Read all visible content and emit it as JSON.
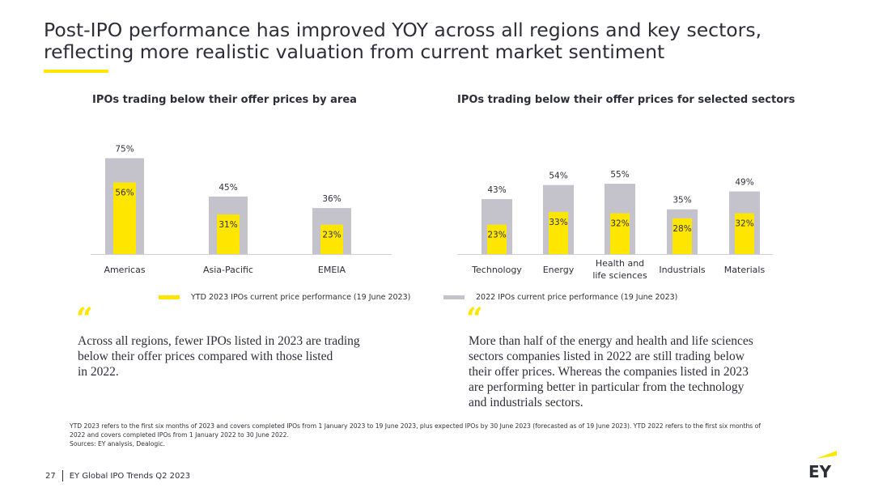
{
  "title_line1": "Post-IPO performance has improved YOY across all regions and key sectors,",
  "title_line2": "reflecting more realistic valuation from current market sentiment",
  "colors": {
    "ytd2023": "#ffe600",
    "y2022": "#c4c3cc",
    "text": "#2e2e38"
  },
  "chart_data": [
    {
      "type": "bar",
      "title": "IPOs trading below their offer prices by area",
      "categories": [
        "Americas",
        "Asia-Pacific",
        "EMEIA"
      ],
      "series": [
        {
          "name": "2022 IPOs current price performance (19 June 2023)",
          "values": [
            75,
            45,
            36
          ],
          "labels": [
            "75%",
            "45%",
            "36%"
          ]
        },
        {
          "name": "YTD 2023 IPOs current price performance (19 June 2023)",
          "values": [
            56,
            31,
            23
          ],
          "labels": [
            "56%",
            "31%",
            "23%"
          ]
        }
      ],
      "ylim": [
        0,
        100
      ]
    },
    {
      "type": "bar",
      "title": "IPOs trading below their offer prices for selected sectors",
      "categories": [
        [
          "Technology"
        ],
        [
          "Energy"
        ],
        [
          "Health and",
          "life sciences"
        ],
        [
          "Industrials"
        ],
        [
          "Materials"
        ]
      ],
      "series": [
        {
          "name": "2022 IPOs current price performance (19 June 2023)",
          "values": [
            43,
            54,
            55,
            35,
            49
          ],
          "labels": [
            "43%",
            "54%",
            "55%",
            "35%",
            "49%"
          ]
        },
        {
          "name": "YTD 2023 IPOs current price performance (19 June 2023)",
          "values": [
            23,
            33,
            32,
            28,
            32
          ],
          "labels": [
            "23%",
            "33%",
            "32%",
            "28%",
            "32%"
          ]
        }
      ],
      "ylim": [
        0,
        100
      ]
    }
  ],
  "legend": {
    "ytd2023": "YTD 2023 IPOs current price performance (19 June 2023)",
    "y2022": "2022 IPOs current price performance (19 June 2023)"
  },
  "quotes": {
    "mark": "“",
    "left": [
      "Across all regions, fewer IPOs listed in 2023 are trading",
      "below their offer prices compared with those listed",
      "in 2022."
    ],
    "right": [
      "More than half of the energy and health and life sciences",
      "sectors companies listed in 2022 are still trading below",
      "their offer prices. Whereas the companies listed in 2023",
      "are performing better in particular from the technology",
      "and industrials sectors."
    ]
  },
  "footnote": {
    "line1": "YTD 2023 refers to the first six months of 2023 and covers completed IPOs from 1 January 2023 to 19 June 2023, plus expected IPOs by 30 June 2023 (forecasted as of 19 June 2023). YTD 2022 refers to the first six months of",
    "line2": "2022 and covers completed IPOs from 1 January 2022 to 30 June 2022.",
    "line3": "Sources: EY analysis, Dealogic."
  },
  "footer": {
    "page": "27",
    "text": "EY Global IPO Trends Q2 2023"
  },
  "logo_text": "EY"
}
